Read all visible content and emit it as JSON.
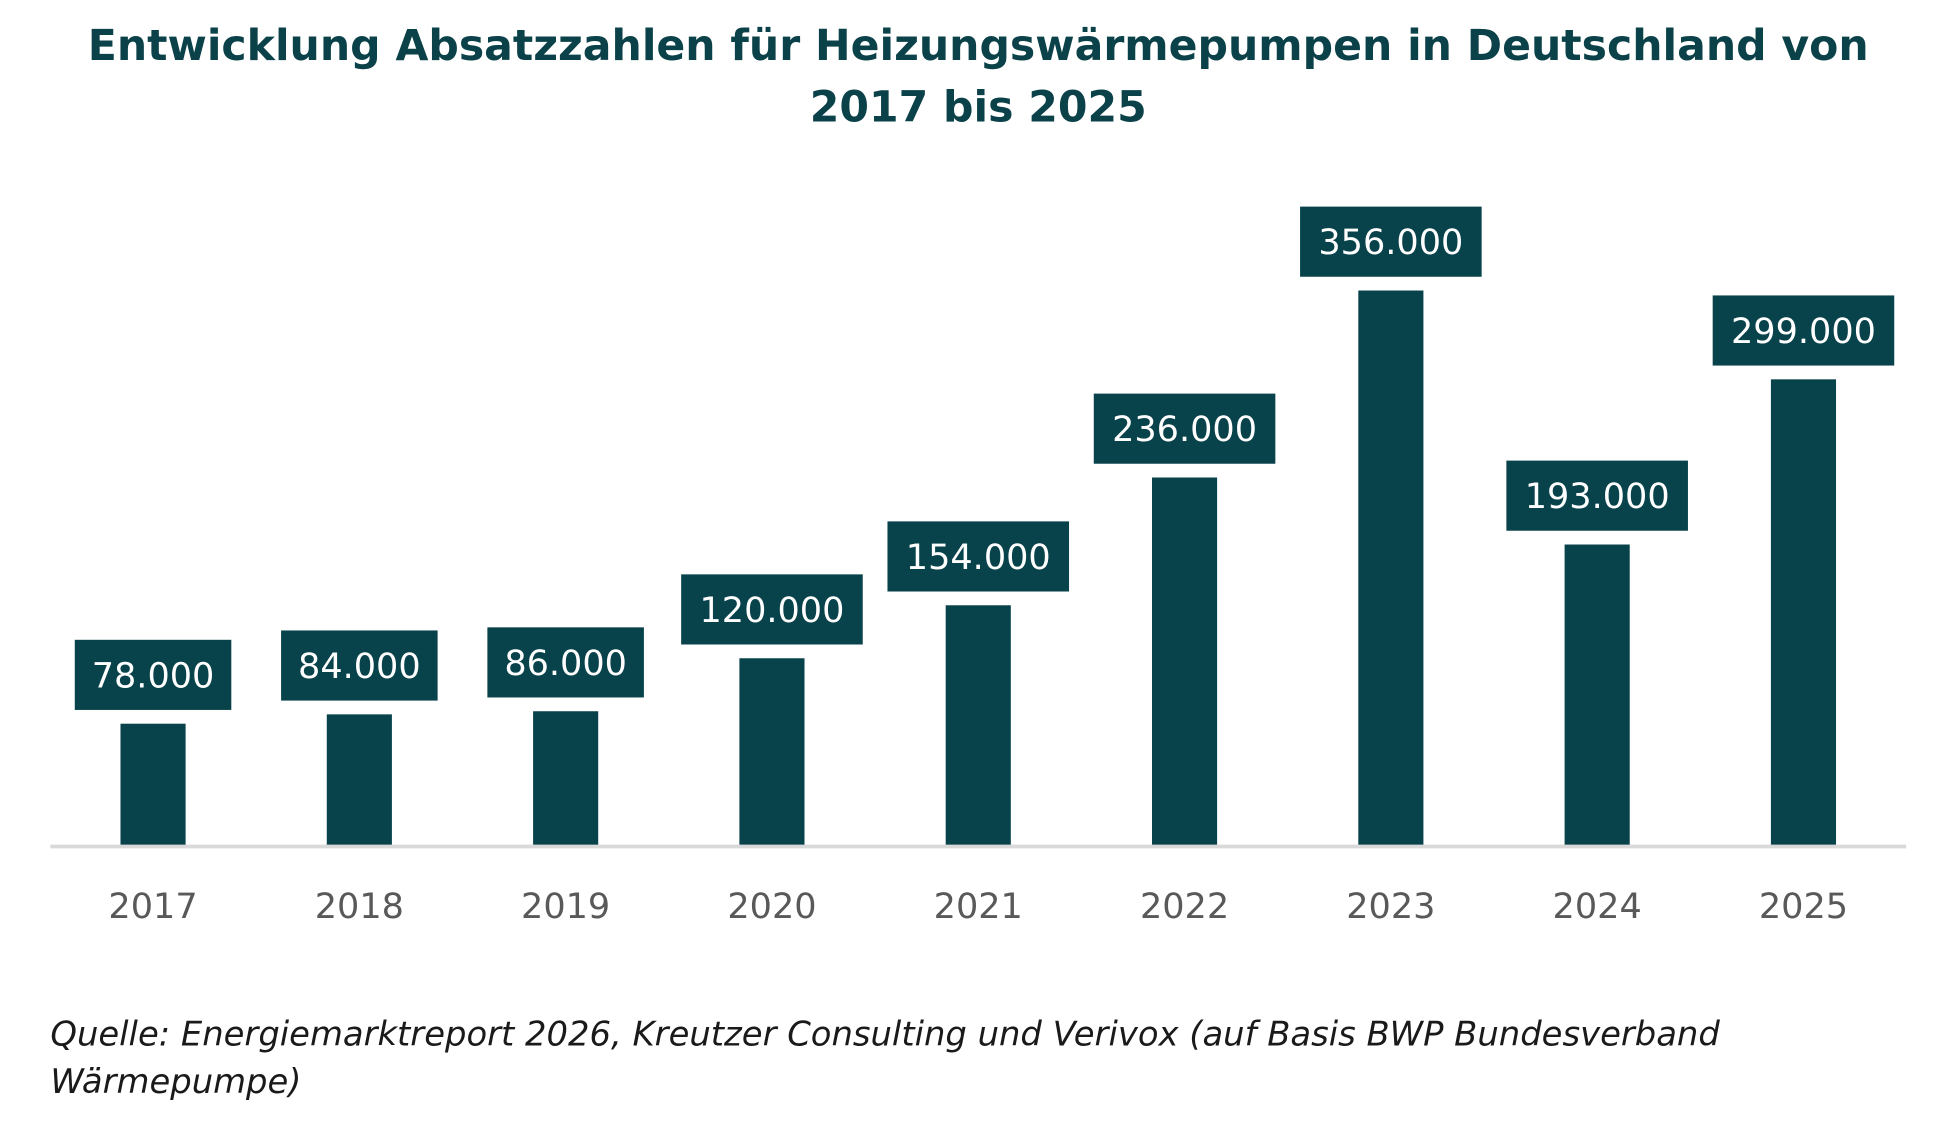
{
  "chart_data": {
    "type": "bar",
    "title_lines": [
      "Entwicklung Absatzzahlen für Heizungswärmepumpen in Deutschland von",
      "2017 bis 2025"
    ],
    "categories": [
      "2017",
      "2018",
      "2019",
      "2020",
      "2021",
      "2022",
      "2023",
      "2024",
      "2025"
    ],
    "values": [
      78000,
      84000,
      86000,
      120000,
      154000,
      236000,
      356000,
      193000,
      299000
    ],
    "data_labels": [
      "78.000",
      "84.000",
      "86.000",
      "120.000",
      "154.000",
      "236.000",
      "356.000",
      "193.000",
      "299.000"
    ],
    "xlabel": "",
    "ylabel": "",
    "ylim": [
      0,
      400000
    ],
    "grid": false,
    "legend": "none",
    "bar_color": "#08424a",
    "label_box_color": "#08424a",
    "source_lines": [
      "Quelle: Energiemarktreport 2026, Kreutzer Consulting und Verivox (auf Basis BWP Bundesverband",
      "Wärmepumpe)"
    ]
  }
}
